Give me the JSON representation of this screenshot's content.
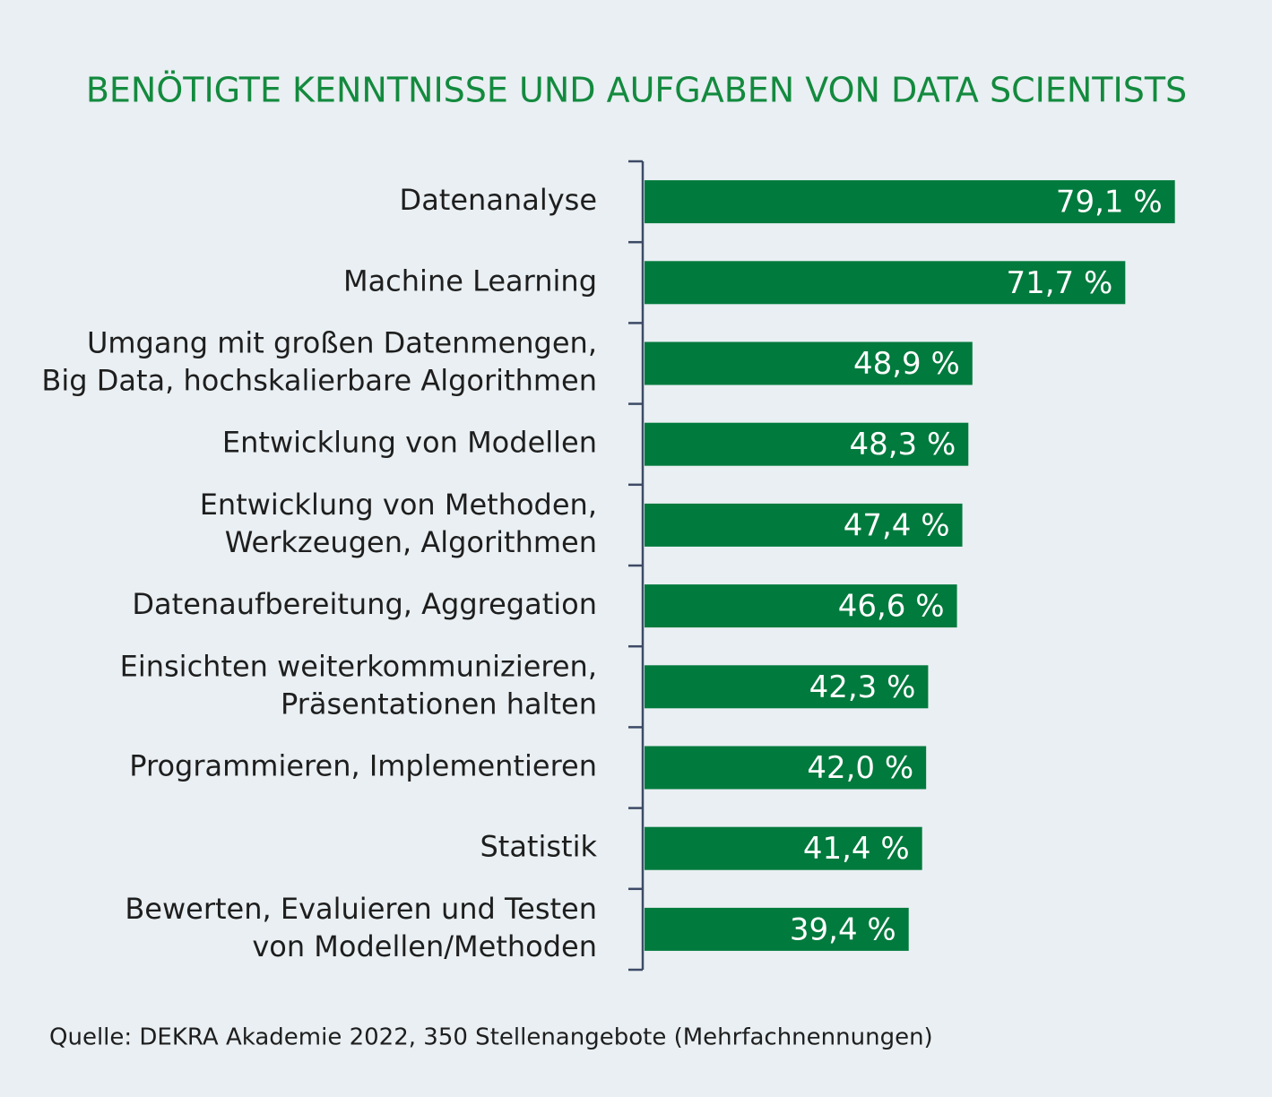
{
  "chart_data": {
    "type": "hbar",
    "title": "BENÖTIGTE KENNTNISSE UND AUFGABEN VON DATA SCIENTISTS",
    "categories": [
      [
        "Datenanalyse"
      ],
      [
        "Machine Learning"
      ],
      [
        "Umgang mit großen Datenmengen,",
        "Big Data, hochskalierbare Algorithmen"
      ],
      [
        "Entwicklung von Modellen"
      ],
      [
        "Entwicklung von Methoden,",
        "Werkzeugen, Algorithmen"
      ],
      [
        "Datenaufbereitung, Aggregation"
      ],
      [
        "Einsichten weiterkommunizieren,",
        "Präsentationen halten"
      ],
      [
        "Programmieren, Implementieren"
      ],
      [
        "Statistik"
      ],
      [
        "Bewerten, Evaluieren und Testen",
        "von Modellen/Methoden"
      ]
    ],
    "values": [
      79.1,
      71.7,
      48.9,
      48.3,
      47.4,
      46.6,
      42.3,
      42.0,
      41.4,
      39.4
    ],
    "value_labels": [
      "79,1 %",
      "71,7 %",
      "48,9 %",
      "48,3 %",
      "47,4 %",
      "46,6 %",
      "42,3 %",
      "42,0 %",
      "41,4 %",
      "39,4 %"
    ],
    "color": "#007a3d",
    "xlim": [
      0,
      100
    ],
    "source": "Quelle: DEKRA Akademie 2022, 350 Stellenangebote (Mehrfachnennungen)"
  }
}
